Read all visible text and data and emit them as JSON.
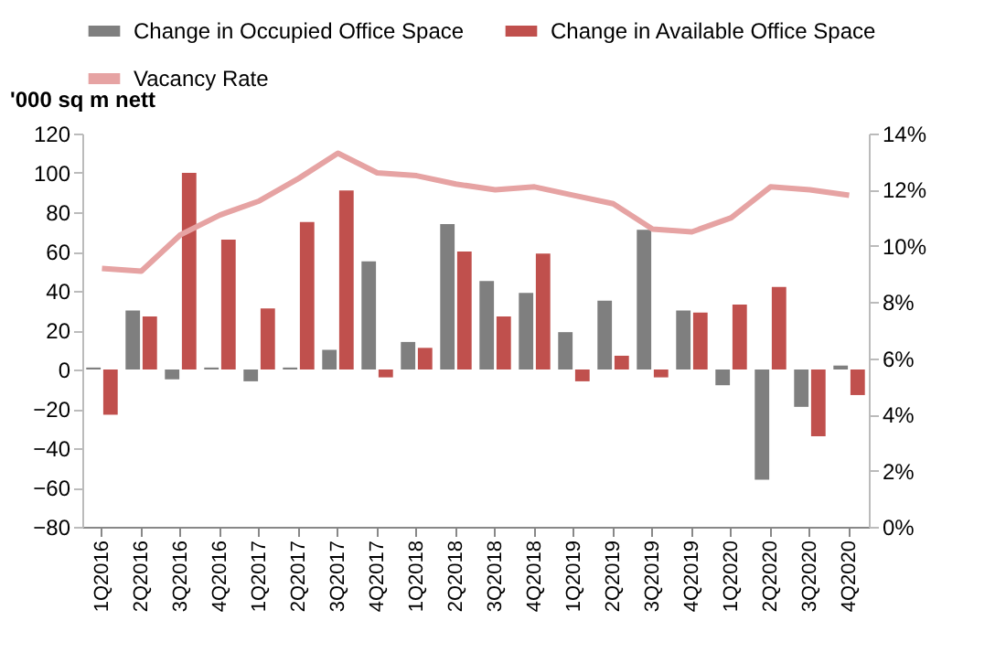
{
  "chart_data": {
    "type": "bar",
    "ylabel": "'000 sq m nett",
    "categories": [
      "1Q2016",
      "2Q2016",
      "3Q2016",
      "4Q2016",
      "1Q2017",
      "2Q2017",
      "3Q2017",
      "4Q2017",
      "1Q2018",
      "2Q2018",
      "3Q2018",
      "4Q2018",
      "1Q2019",
      "2Q2019",
      "3Q2019",
      "4Q2019",
      "1Q2020",
      "2Q2020",
      "3Q2020",
      "4Q2020"
    ],
    "series": [
      {
        "name": "Change in Occupied Office Space",
        "color": "#7f7f7f",
        "values": [
          1,
          30,
          -5,
          1,
          -6,
          1,
          10,
          55,
          14,
          74,
          45,
          39,
          19,
          35,
          71,
          30,
          -8,
          -56,
          -19,
          2
        ]
      },
      {
        "name": "Change in Available Office Space",
        "color": "#c0504d",
        "values": [
          -23,
          27,
          100,
          66,
          31,
          75,
          91,
          -4,
          11,
          60,
          27,
          59,
          -6,
          7,
          -4,
          29,
          33,
          42,
          -34,
          -13
        ]
      },
      {
        "name": "Vacancy Rate",
        "type": "line",
        "axis": "y2",
        "color": "#e6a3a3",
        "values": [
          9.2,
          9.1,
          10.4,
          11.1,
          11.6,
          12.4,
          13.3,
          12.6,
          12.5,
          12.2,
          12.0,
          12.1,
          11.8,
          11.5,
          10.6,
          10.5,
          11.0,
          12.1,
          12.0,
          11.8
        ]
      }
    ],
    "ylim": [
      -80,
      120
    ],
    "yticks": [
      -80,
      -60,
      -40,
      -20,
      0,
      20,
      40,
      60,
      80,
      100,
      120
    ],
    "y2lim": [
      0,
      14
    ],
    "y2ticks": [
      {
        "value": 0,
        "label": "0%"
      },
      {
        "value": 2,
        "label": "2%"
      },
      {
        "value": 4,
        "label": "4%"
      },
      {
        "value": 6,
        "label": "6%"
      },
      {
        "value": 8,
        "label": "8%"
      },
      {
        "value": 10,
        "label": "10%"
      },
      {
        "value": 12,
        "label": "12%"
      },
      {
        "value": 14,
        "label": "14%"
      }
    ],
    "grid": false,
    "legend": "top"
  }
}
